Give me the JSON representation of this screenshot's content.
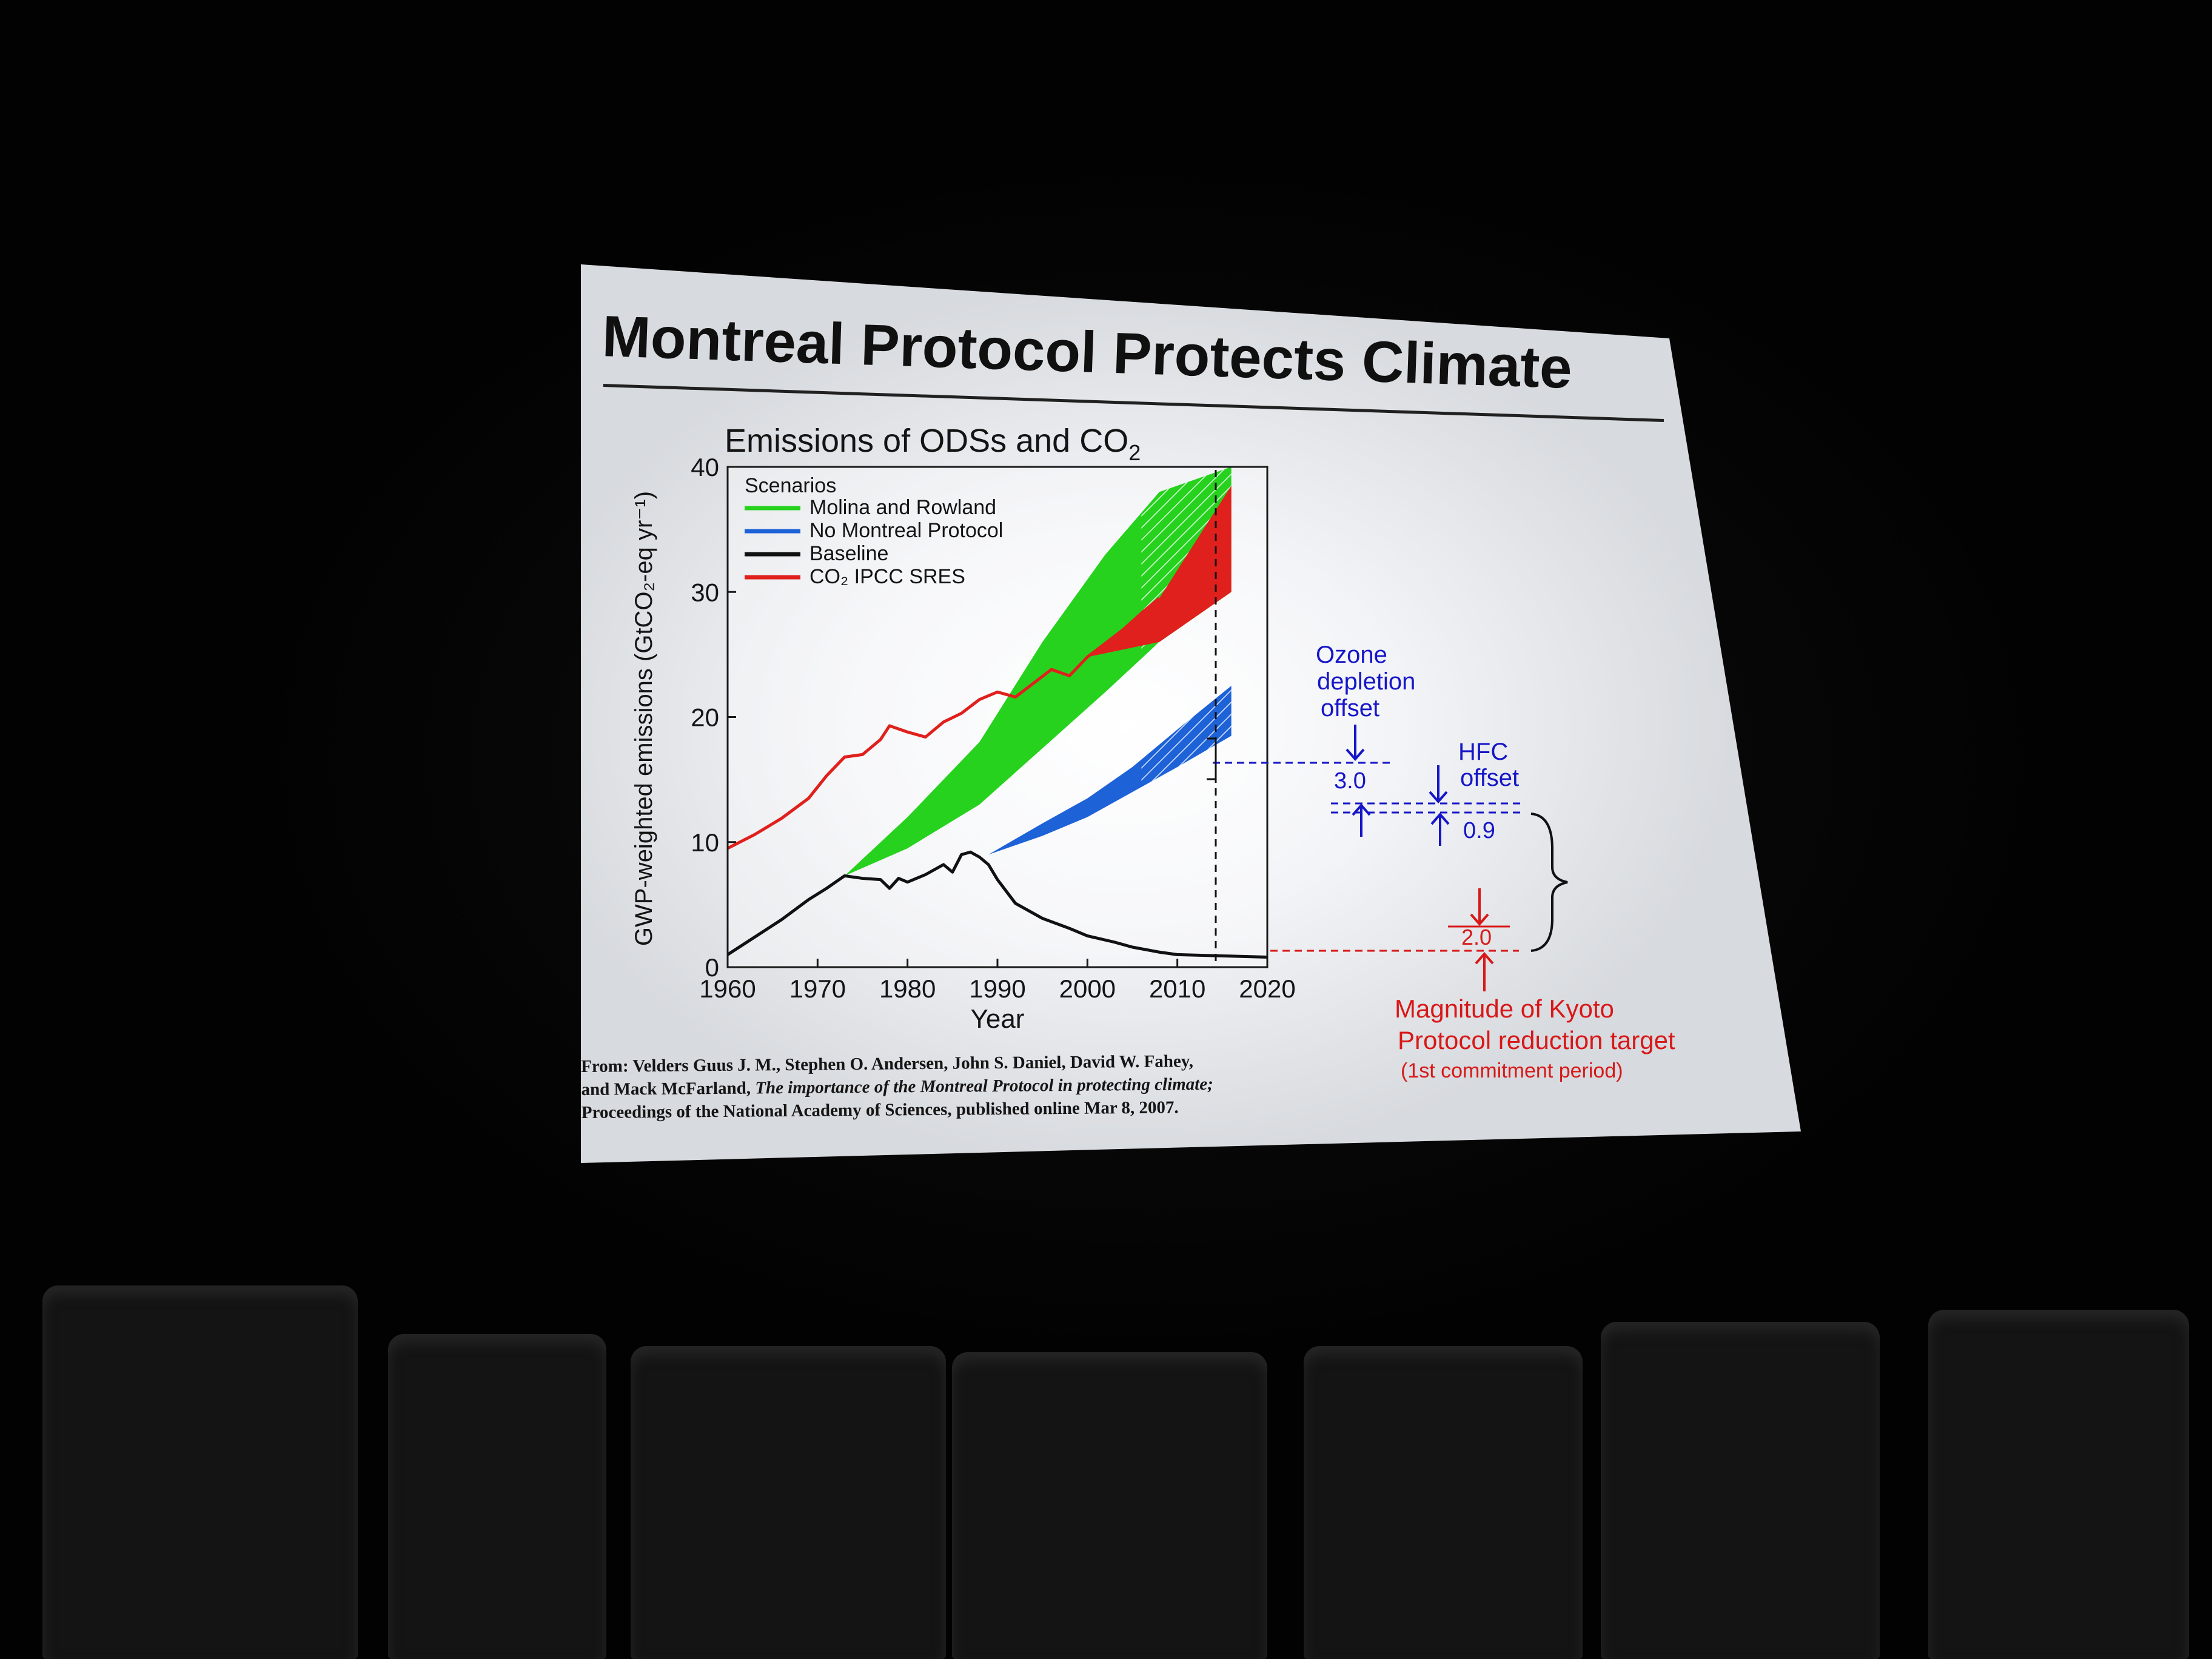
{
  "slide": {
    "title": "Montreal Protocol Protects Climate",
    "citation": {
      "line1": "From: Velders Guus J. M., Stephen O. Andersen, John S. Daniel, David W. Fahey,",
      "line2_prefix": "and Mack McFarland,",
      "line2_italic": "The importance of the Montreal Protocol in protecting climate;",
      "line3": "Proceedings of the National Academy of Sciences, published online Mar 8, 2007."
    }
  },
  "chart_data": {
    "type": "line",
    "title": "Emissions of ODSs and CO",
    "title_subscript": "2",
    "xlabel": "Year",
    "ylabel": "GWP-weighted emissions (GtCO₂-eq yr⁻¹)",
    "xlim": [
      1960,
      2020
    ],
    "ylim": [
      0,
      40
    ],
    "xticks": [
      1960,
      1970,
      1980,
      1990,
      2000,
      2010,
      2020
    ],
    "yticks": [
      0,
      10,
      20,
      30,
      40
    ],
    "grid": false,
    "legend": {
      "title": "Scenarios",
      "placement": "top-left",
      "entries": [
        {
          "label": "Molina and Rowland",
          "color": "#27d21f"
        },
        {
          "label": "No Montreal Protocol",
          "color": "#1e62d8"
        },
        {
          "label": "Baseline",
          "color": "#111111"
        },
        {
          "label": "CO₂ IPCC SRES",
          "color": "#e0201c"
        }
      ]
    },
    "series": [
      {
        "name": "CO₂ IPCC SRES",
        "x": [
          1960,
          1963,
          1966,
          1969,
          1971,
          1973,
          1975,
          1977,
          1978,
          1980,
          1982,
          1984,
          1986,
          1988,
          1990,
          1992,
          1994,
          1996,
          1998,
          2000,
          2002,
          2004,
          2006,
          2008
        ],
        "y": [
          9.5,
          10.6,
          11.9,
          13.5,
          15.3,
          16.8,
          17.0,
          18.2,
          19.3,
          18.8,
          18.4,
          19.6,
          20.3,
          21.4,
          22.0,
          21.6,
          22.7,
          23.8,
          23.3,
          24.8,
          25.9,
          27.0,
          28.3,
          29.5
        ]
      },
      {
        "name": "Baseline",
        "x": [
          1960,
          1963,
          1966,
          1969,
          1971,
          1973,
          1975,
          1977,
          1978,
          1979,
          1980,
          1982,
          1984,
          1985,
          1986,
          1987,
          1988,
          1989,
          1990,
          1992,
          1995,
          1998,
          2000,
          2003,
          2005,
          2008,
          2010,
          2015,
          2020
        ],
        "y": [
          1.0,
          2.4,
          3.8,
          5.4,
          6.3,
          7.3,
          7.1,
          7.0,
          6.3,
          7.1,
          6.8,
          7.4,
          8.2,
          7.6,
          9.0,
          9.2,
          8.8,
          8.2,
          7.0,
          5.1,
          3.9,
          3.1,
          2.5,
          2.0,
          1.6,
          1.2,
          1.0,
          0.9,
          0.8
        ]
      },
      {
        "name": "Molina and Rowland",
        "x": [
          1973,
          1980,
          1988,
          1995,
          2002,
          2008,
          2016
        ],
        "y_low": [
          7.3,
          9.5,
          13.0,
          17.5,
          22.0,
          26.0,
          30.0
        ],
        "y_high": [
          7.3,
          12.0,
          18.0,
          26.0,
          33.0,
          38.0,
          40.0
        ]
      },
      {
        "name": "No Montreal Protocol",
        "x": [
          1989,
          1995,
          2000,
          2005,
          2010,
          2016
        ],
        "y_low": [
          9.0,
          10.5,
          12.0,
          14.0,
          16.0,
          18.5
        ],
        "y_high": [
          9.0,
          11.5,
          13.5,
          16.0,
          19.0,
          22.5
        ]
      }
    ],
    "annotations": [
      {
        "label": "Ozone",
        "color": "#1616c8"
      },
      {
        "label": "depletion",
        "color": "#1616c8"
      },
      {
        "label": "offset",
        "color": "#1616c8"
      },
      {
        "label": "3.0",
        "color": "#1616c8"
      },
      {
        "label": "HFC",
        "color": "#1616c8"
      },
      {
        "label": "offset",
        "color": "#1616c8"
      },
      {
        "label": "0.9",
        "color": "#1616c8"
      },
      {
        "label": "2.0",
        "color": "#d81818"
      },
      {
        "label": "Magnitude of Kyoto",
        "color": "#d81818"
      },
      {
        "label": "Protocol reduction target",
        "color": "#d81818"
      },
      {
        "label": "(1st commitment period)",
        "color": "#d81818"
      }
    ]
  }
}
